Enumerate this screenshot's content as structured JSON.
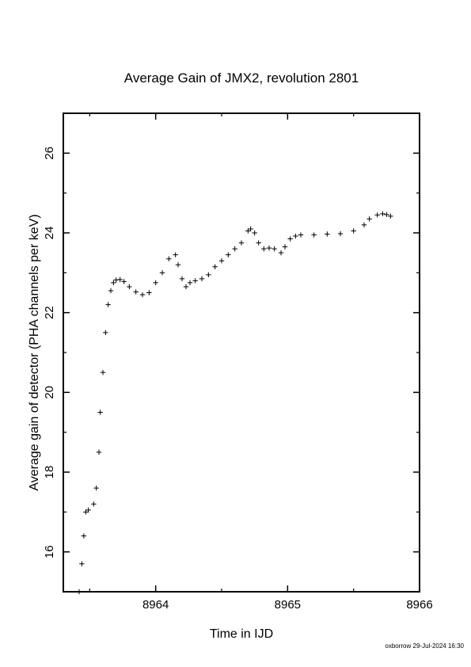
{
  "chart_data": {
    "type": "scatter",
    "marker": "plus",
    "title": "Average Gain of JMX2, revolution 2801",
    "xlabel": "Time in IJD",
    "ylabel": "Average gain of detector (PHA channels per keV)",
    "xlim": [
      8963.3,
      8966
    ],
    "ylim": [
      15,
      27
    ],
    "xticks": [
      8964,
      8965,
      8966
    ],
    "xtick_labels": [
      "8964",
      "8965",
      "8966"
    ],
    "yticks": [
      16,
      18,
      20,
      22,
      24,
      26
    ],
    "ytick_labels": [
      "16",
      "18",
      "20",
      "22",
      "24",
      "26"
    ],
    "grid": false,
    "legend": "none",
    "color": "#000000",
    "series": [
      {
        "x": [
          8963.42,
          8963.44,
          8963.455,
          8963.47,
          8963.49,
          8963.53,
          8963.55,
          8963.57,
          8963.58,
          8963.6,
          8963.62,
          8963.64,
          8963.66,
          8963.68,
          8963.7,
          8963.73,
          8963.76,
          8963.8,
          8963.85,
          8963.9,
          8963.95,
          8964.0,
          8964.05,
          8964.1,
          8964.15,
          8964.17,
          8964.2,
          8964.23,
          8964.26,
          8964.3,
          8964.35,
          8964.4,
          8964.45,
          8964.5,
          8964.55,
          8964.6,
          8964.65,
          8964.7,
          8964.72,
          8964.75,
          8964.78,
          8964.82,
          8964.86,
          8964.9,
          8964.95,
          8964.98,
          8965.02,
          8965.06,
          8965.1,
          8965.2,
          8965.3,
          8965.4,
          8965.5,
          8965.58,
          8965.62,
          8965.68,
          8965.72,
          8965.75,
          8965.78
        ],
        "y": [
          15.0,
          15.7,
          16.4,
          17.0,
          17.05,
          17.2,
          17.6,
          18.5,
          19.5,
          20.5,
          21.5,
          22.2,
          22.55,
          22.75,
          22.82,
          22.83,
          22.78,
          22.65,
          22.52,
          22.45,
          22.5,
          22.75,
          23.0,
          23.35,
          23.45,
          23.2,
          22.85,
          22.65,
          22.75,
          22.8,
          22.85,
          22.95,
          23.15,
          23.3,
          23.45,
          23.6,
          23.75,
          24.05,
          24.1,
          24.0,
          23.75,
          23.6,
          23.62,
          23.6,
          23.5,
          23.65,
          23.85,
          23.92,
          23.95,
          23.95,
          23.97,
          23.98,
          24.05,
          24.2,
          24.35,
          24.45,
          24.48,
          24.46,
          24.42
        ]
      }
    ]
  },
  "footer": {
    "text": "oxborrow 29-Jul-2024 16:30"
  }
}
